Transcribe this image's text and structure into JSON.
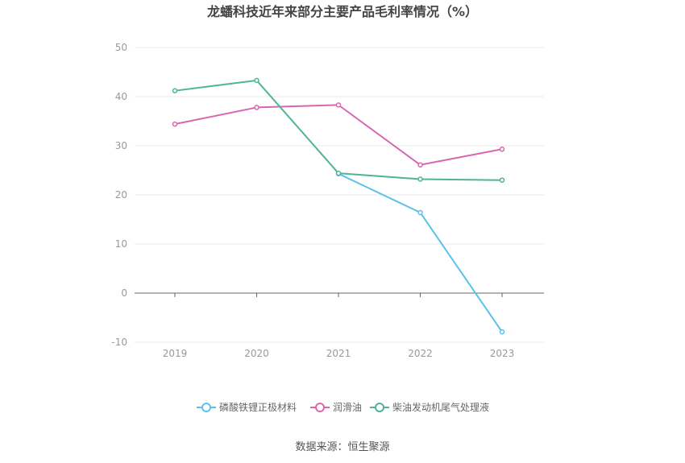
{
  "chart_data": {
    "type": "line",
    "title": "龙蟠科技近年来部分主要产品毛利率情况（%）",
    "categories": [
      "2019",
      "2020",
      "2021",
      "2022",
      "2023"
    ],
    "ylim": [
      -10,
      50
    ],
    "yticks": [
      50,
      40,
      30,
      20,
      10,
      0,
      -10
    ],
    "series": [
      {
        "name": "磷酸铁锂正极材料",
        "color": "#5bc0eb",
        "values": [
          null,
          null,
          24.3,
          16.4,
          -7.9
        ]
      },
      {
        "name": "润滑油",
        "color": "#d966b0",
        "values": [
          34.4,
          37.8,
          38.3,
          26.1,
          29.3
        ]
      },
      {
        "name": "柴油发动机尾气处理液",
        "color": "#4fb39a",
        "values": [
          41.2,
          43.3,
          24.4,
          23.2,
          23.0
        ]
      }
    ],
    "source": "数据来源：恒生聚源"
  }
}
